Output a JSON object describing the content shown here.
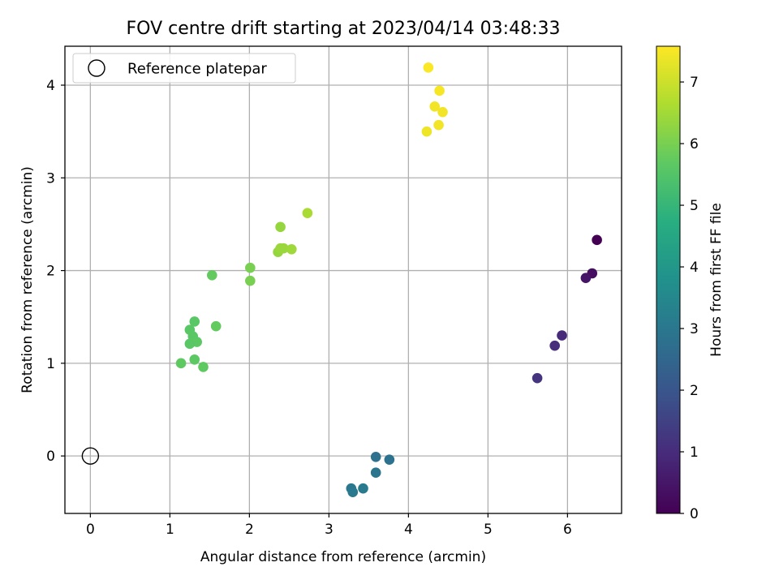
{
  "chart_data": {
    "type": "scatter",
    "title": "FOV centre drift starting at 2023/04/14 03:48:33",
    "xlabel": "Angular distance from reference (arcmin)",
    "ylabel": "Rotation from reference (arcmin)",
    "xlim": [
      -0.32,
      6.68
    ],
    "ylim": [
      -0.62,
      4.42
    ],
    "xticks": [
      "0",
      "1",
      "2",
      "3",
      "4",
      "5",
      "6"
    ],
    "yticks": [
      "0",
      "1",
      "2",
      "3",
      "4"
    ],
    "grid": true,
    "legend": {
      "placement": "top-left",
      "entries": [
        "Reference platepar"
      ]
    },
    "reference_point": {
      "x": 0,
      "y": 0
    },
    "colorbar": {
      "label": "Hours from first FF file",
      "range": [
        0,
        7.58
      ],
      "ticks": [
        "0",
        "1",
        "2",
        "3",
        "4",
        "5",
        "6",
        "7"
      ],
      "colormap": "viridis"
    },
    "points": [
      {
        "x": 6.37,
        "y": 2.33,
        "c": 0.0
      },
      {
        "x": 6.31,
        "y": 1.97,
        "c": 0.3
      },
      {
        "x": 6.23,
        "y": 1.92,
        "c": 0.45
      },
      {
        "x": 5.93,
        "y": 1.3,
        "c": 0.95
      },
      {
        "x": 5.84,
        "y": 1.19,
        "c": 1.05
      },
      {
        "x": 5.62,
        "y": 0.84,
        "c": 1.2
      },
      {
        "x": 3.59,
        "y": -0.01,
        "c": 2.8
      },
      {
        "x": 3.76,
        "y": -0.04,
        "c": 2.85
      },
      {
        "x": 3.59,
        "y": -0.18,
        "c": 2.9
      },
      {
        "x": 3.28,
        "y": -0.35,
        "c": 3.0
      },
      {
        "x": 3.3,
        "y": -0.39,
        "c": 3.05
      },
      {
        "x": 3.43,
        "y": -0.35,
        "c": 3.1
      },
      {
        "x": 1.53,
        "y": 1.95,
        "c": 5.75
      },
      {
        "x": 1.31,
        "y": 1.45,
        "c": 5.6
      },
      {
        "x": 1.25,
        "y": 1.36,
        "c": 5.6
      },
      {
        "x": 1.29,
        "y": 1.29,
        "c": 5.6
      },
      {
        "x": 1.34,
        "y": 1.23,
        "c": 5.65
      },
      {
        "x": 1.25,
        "y": 1.21,
        "c": 5.6
      },
      {
        "x": 1.58,
        "y": 1.4,
        "c": 5.75
      },
      {
        "x": 1.31,
        "y": 1.04,
        "c": 5.65
      },
      {
        "x": 1.14,
        "y": 1.0,
        "c": 5.7
      },
      {
        "x": 1.42,
        "y": 0.96,
        "c": 5.7
      },
      {
        "x": 2.01,
        "y": 2.03,
        "c": 6.0
      },
      {
        "x": 2.01,
        "y": 1.89,
        "c": 6.0
      },
      {
        "x": 2.39,
        "y": 2.47,
        "c": 6.35
      },
      {
        "x": 2.36,
        "y": 2.2,
        "c": 6.35
      },
      {
        "x": 2.39,
        "y": 2.24,
        "c": 6.4
      },
      {
        "x": 2.43,
        "y": 2.24,
        "c": 6.4
      },
      {
        "x": 2.53,
        "y": 2.23,
        "c": 6.45
      },
      {
        "x": 2.73,
        "y": 2.62,
        "c": 6.6
      },
      {
        "x": 4.25,
        "y": 4.19,
        "c": 7.55
      },
      {
        "x": 4.39,
        "y": 3.94,
        "c": 7.5
      },
      {
        "x": 4.33,
        "y": 3.77,
        "c": 7.45
      },
      {
        "x": 4.43,
        "y": 3.71,
        "c": 7.45
      },
      {
        "x": 4.38,
        "y": 3.57,
        "c": 7.45
      },
      {
        "x": 4.23,
        "y": 3.5,
        "c": 7.4
      }
    ]
  }
}
